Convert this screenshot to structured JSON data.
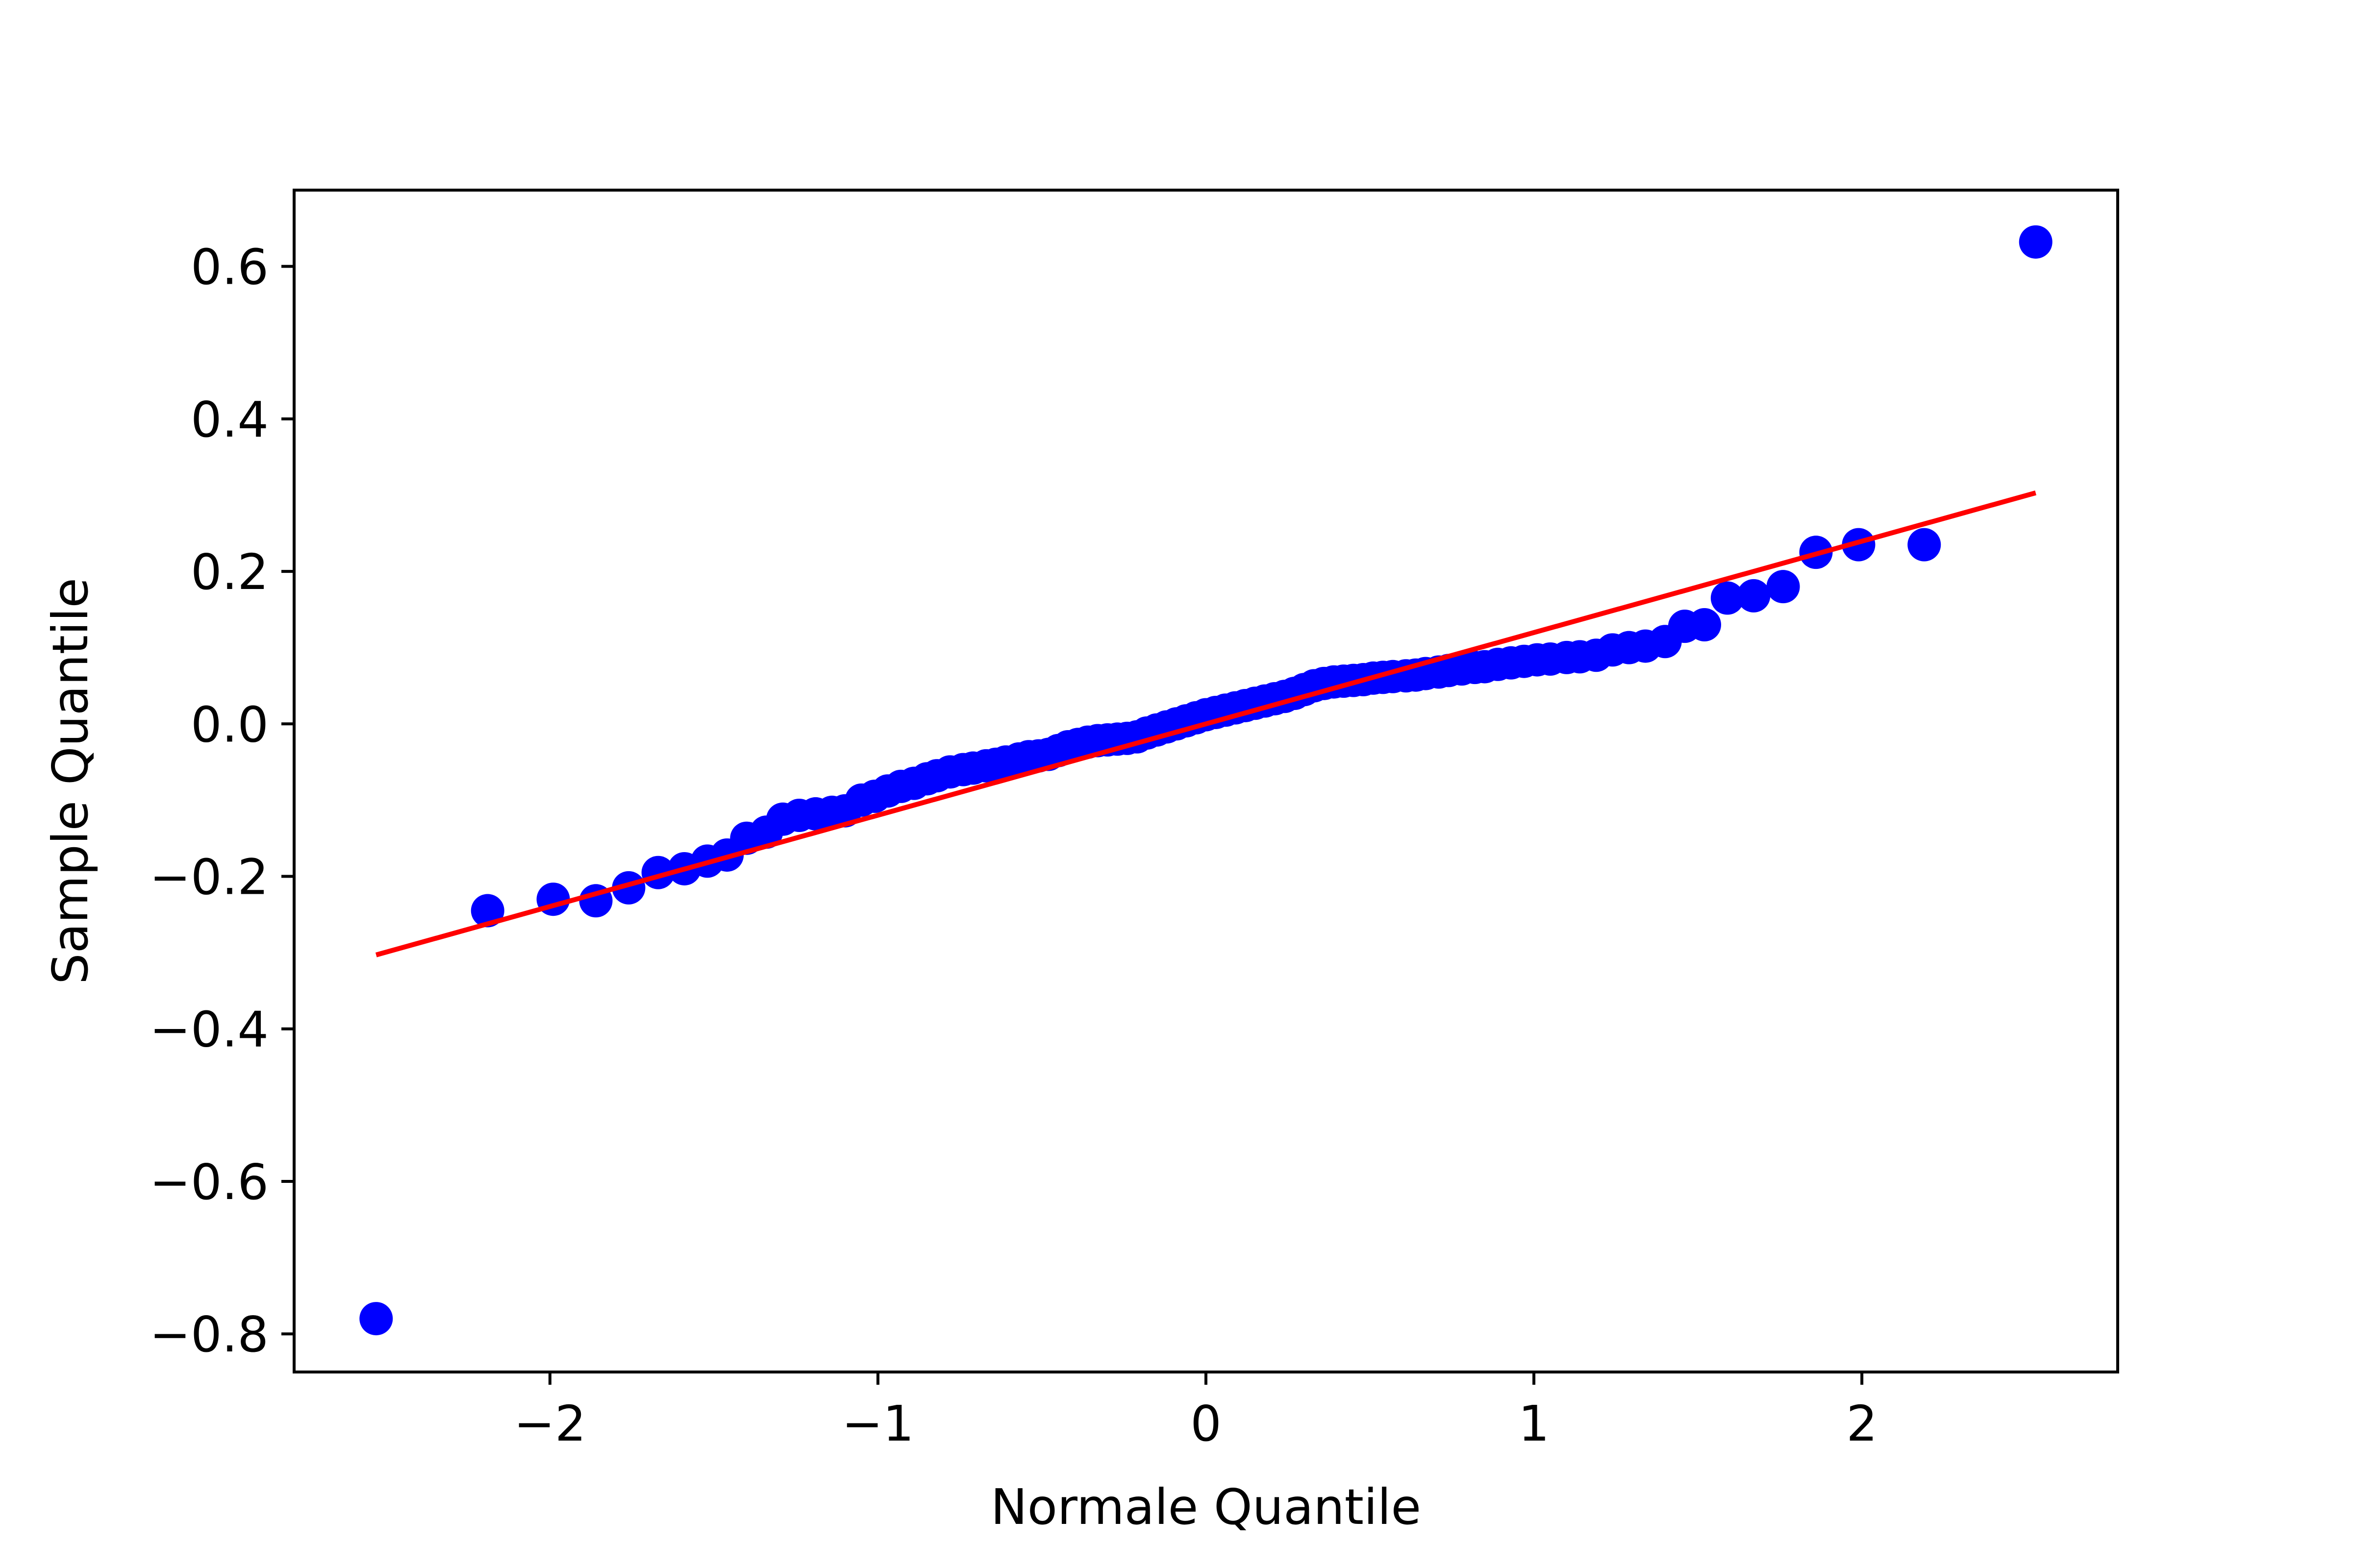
{
  "chart_data": {
    "type": "scatter",
    "title": "",
    "xlabel": "Normale Quantile",
    "ylabel": "Sample Quantile",
    "xlim": [
      -2.78,
      2.78
    ],
    "ylim": [
      -0.85,
      0.7
    ],
    "xticks": [
      -2,
      -1,
      0,
      1,
      2
    ],
    "xtick_labels": [
      "−2",
      "−1",
      "0",
      "1",
      "2"
    ],
    "yticks": [
      -0.8,
      -0.6,
      -0.4,
      -0.2,
      0.0,
      0.2,
      0.4,
      0.6
    ],
    "ytick_labels": [
      "−0.8",
      "−0.6",
      "−0.4",
      "−0.2",
      "0.0",
      "0.2",
      "0.4",
      "0.6"
    ],
    "grid": false,
    "series": [
      {
        "kind": "scatter",
        "color": "#0000ff",
        "points": [
          [
            -2.53,
            -0.78
          ],
          [
            -2.19,
            -0.245
          ],
          [
            -1.99,
            -0.23
          ],
          [
            -1.86,
            -0.232
          ],
          [
            -1.76,
            -0.215
          ],
          [
            -1.67,
            -0.195
          ],
          [
            -1.59,
            -0.19
          ],
          [
            -1.52,
            -0.18
          ],
          [
            -1.46,
            -0.172
          ],
          [
            -1.4,
            -0.15
          ],
          [
            -1.34,
            -0.142
          ],
          [
            -1.29,
            -0.125
          ],
          [
            -1.24,
            -0.12
          ],
          [
            -1.19,
            -0.118
          ],
          [
            -1.14,
            -0.116
          ],
          [
            -1.1,
            -0.114
          ],
          [
            -1.05,
            -0.1
          ],
          [
            -1.01,
            -0.095
          ],
          [
            -0.97,
            -0.088
          ],
          [
            -0.93,
            -0.082
          ],
          [
            -0.89,
            -0.078
          ],
          [
            -0.85,
            -0.072
          ],
          [
            -0.82,
            -0.068
          ],
          [
            -0.78,
            -0.063
          ],
          [
            -0.74,
            -0.06
          ],
          [
            -0.71,
            -0.058
          ],
          [
            -0.67,
            -0.055
          ],
          [
            -0.64,
            -0.053
          ],
          [
            -0.61,
            -0.05
          ],
          [
            -0.57,
            -0.046
          ],
          [
            -0.54,
            -0.043
          ],
          [
            -0.51,
            -0.042
          ],
          [
            -0.48,
            -0.04
          ],
          [
            -0.45,
            -0.035
          ],
          [
            -0.42,
            -0.03
          ],
          [
            -0.39,
            -0.027
          ],
          [
            -0.36,
            -0.024
          ],
          [
            -0.33,
            -0.022
          ],
          [
            -0.3,
            -0.021
          ],
          [
            -0.27,
            -0.02
          ],
          [
            -0.24,
            -0.019
          ],
          [
            -0.21,
            -0.017
          ],
          [
            -0.18,
            -0.012
          ],
          [
            -0.15,
            -0.008
          ],
          [
            -0.12,
            -0.004
          ],
          [
            -0.09,
            0.0
          ],
          [
            -0.06,
            0.004
          ],
          [
            -0.03,
            0.008
          ],
          [
            0.0,
            0.012
          ],
          [
            0.03,
            0.015
          ],
          [
            0.06,
            0.018
          ],
          [
            0.09,
            0.021
          ],
          [
            0.12,
            0.024
          ],
          [
            0.15,
            0.027
          ],
          [
            0.18,
            0.03
          ],
          [
            0.21,
            0.033
          ],
          [
            0.24,
            0.036
          ],
          [
            0.27,
            0.04
          ],
          [
            0.3,
            0.045
          ],
          [
            0.33,
            0.05
          ],
          [
            0.36,
            0.053
          ],
          [
            0.39,
            0.055
          ],
          [
            0.42,
            0.056
          ],
          [
            0.45,
            0.057
          ],
          [
            0.48,
            0.058
          ],
          [
            0.51,
            0.06
          ],
          [
            0.54,
            0.061
          ],
          [
            0.57,
            0.062
          ],
          [
            0.61,
            0.063
          ],
          [
            0.64,
            0.064
          ],
          [
            0.67,
            0.066
          ],
          [
            0.71,
            0.068
          ],
          [
            0.74,
            0.07
          ],
          [
            0.78,
            0.072
          ],
          [
            0.82,
            0.074
          ],
          [
            0.85,
            0.075
          ],
          [
            0.89,
            0.078
          ],
          [
            0.93,
            0.08
          ],
          [
            0.97,
            0.082
          ],
          [
            1.01,
            0.084
          ],
          [
            1.05,
            0.085
          ],
          [
            1.1,
            0.087
          ],
          [
            1.14,
            0.088
          ],
          [
            1.19,
            0.09
          ],
          [
            1.24,
            0.097
          ],
          [
            1.29,
            0.1
          ],
          [
            1.34,
            0.102
          ],
          [
            1.4,
            0.108
          ],
          [
            1.46,
            0.128
          ],
          [
            1.52,
            0.13
          ],
          [
            1.59,
            0.165
          ],
          [
            1.67,
            0.168
          ],
          [
            1.76,
            0.18
          ],
          [
            1.86,
            0.225
          ],
          [
            1.99,
            0.235
          ],
          [
            2.19,
            0.235
          ],
          [
            2.53,
            0.632
          ]
        ]
      },
      {
        "kind": "line",
        "color": "#ff0000",
        "points": [
          [
            -2.53,
            -0.303
          ],
          [
            2.53,
            0.303
          ]
        ]
      }
    ]
  }
}
